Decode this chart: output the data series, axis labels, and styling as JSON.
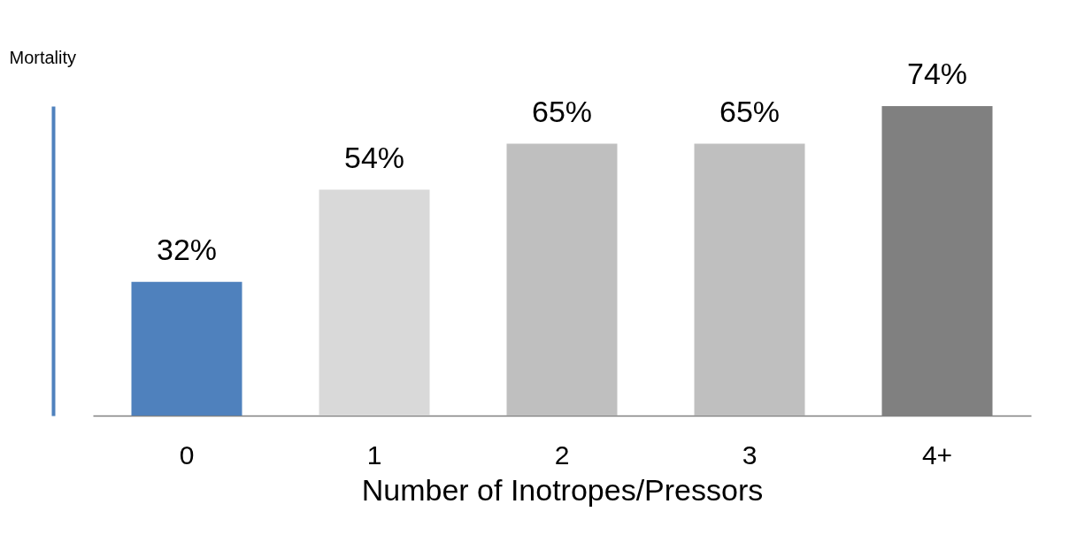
{
  "chart_data": {
    "type": "bar",
    "xlabel": "Number of Inotropes/Pressors",
    "ylabel": "Mortality",
    "categories": [
      "0",
      "1",
      "2",
      "3",
      "4+"
    ],
    "values": [
      32,
      54,
      65,
      65,
      74
    ],
    "value_labels": [
      "32%",
      "54%",
      "65%",
      "65%",
      "74%"
    ],
    "colors": [
      "#4f81bd",
      "#d9d9d9",
      "#bfbfbf",
      "#bfbfbf",
      "#808080"
    ],
    "tick_labels": "x",
    "grid": false
  }
}
